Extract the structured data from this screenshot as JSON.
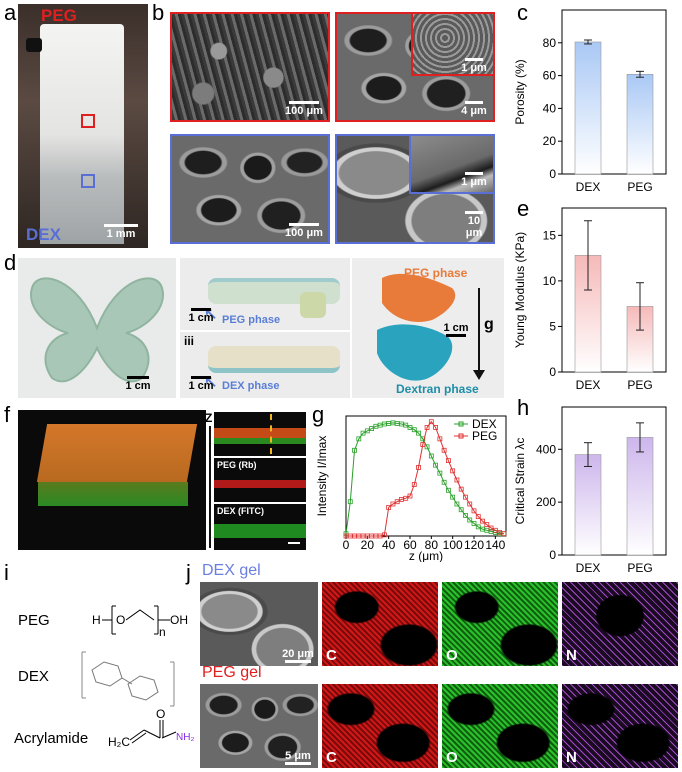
{
  "panel_labels": {
    "a": "a",
    "b": "b",
    "c": "c",
    "d": "d",
    "e": "e",
    "f": "f",
    "g": "g",
    "h": "h",
    "i": "i",
    "j": "j"
  },
  "panel_a": {
    "top_label": "PEG",
    "bottom_label": "DEX",
    "scale": "1 mm"
  },
  "panel_b": {
    "scales": [
      "100 μm",
      "4 μm",
      "1 μm",
      "100 μm",
      "10 μm",
      "1 μm"
    ]
  },
  "panel_d": {
    "scale_1": "1 cm",
    "scale_2": "1 cm",
    "scale_3": "1 cm",
    "scale_4": "1 cm",
    "peg_phase_arrow": "PEG phase",
    "dex_phase_arrow": "DEX phase",
    "sub_iii": "iii",
    "right_top": "PEG phase",
    "right_bottom": "Dextran phase",
    "gravity": "g"
  },
  "panel_f": {
    "z_label": "Z",
    "peg_label": "PEG (Rb)",
    "dex_label": "DEX (FITC)"
  },
  "panel_i": {
    "rows": [
      "PEG",
      "DEX",
      "Acrylamide"
    ]
  },
  "panel_j": {
    "dex_title": "DEX gel",
    "peg_title": "PEG gel",
    "scale_top": "20 μm",
    "scale_bottom": "5 μm",
    "elements": [
      "C",
      "O",
      "N"
    ]
  },
  "colors": {
    "red": "#e02020",
    "blue": "#5a6fd6",
    "green": "#2aa02a",
    "purple": "#b15ee0"
  },
  "chart_data": [
    {
      "id": "c",
      "type": "bar",
      "categories": [
        "DEX",
        "PEG"
      ],
      "values": [
        80.5,
        60.8
      ],
      "errors": [
        1.2,
        1.8
      ],
      "ylabel": "Porosity (%)",
      "ylim": [
        0,
        100
      ],
      "yticks": [
        0,
        20,
        40,
        60,
        80
      ],
      "color": "#a9c8f5"
    },
    {
      "id": "e",
      "type": "bar",
      "categories": [
        "DEX",
        "PEG"
      ],
      "values": [
        12.8,
        7.2
      ],
      "errors": [
        3.8,
        2.6
      ],
      "ylabel": "Young Modulus (KPa)",
      "ylim": [
        0,
        18
      ],
      "yticks": [
        0,
        5,
        10,
        15
      ],
      "color": "#f6b9b9"
    },
    {
      "id": "h",
      "type": "bar",
      "categories": [
        "DEX",
        "PEG"
      ],
      "values": [
        380,
        445
      ],
      "errors": [
        45,
        55
      ],
      "ylabel": "Critical Strain λc",
      "ylim": [
        0,
        560
      ],
      "yticks": [
        0,
        200,
        400
      ],
      "color": "#cdb6ec"
    },
    {
      "id": "g",
      "type": "line",
      "xlabel": "z (μm)",
      "ylabel": "Intensity I/Imax",
      "xlim": [
        0,
        150
      ],
      "ylim": [
        0,
        1.05
      ],
      "xticks": [
        0,
        20,
        40,
        60,
        80,
        100,
        120,
        140
      ],
      "series": [
        {
          "name": "DEX",
          "color": "#2aa02a",
          "x": [
            0,
            4,
            8,
            12,
            16,
            20,
            24,
            28,
            32,
            36,
            40,
            44,
            48,
            52,
            56,
            60,
            64,
            68,
            72,
            76,
            80,
            84,
            88,
            92,
            96,
            100,
            104,
            108,
            112,
            116,
            120,
            124,
            128,
            132,
            136,
            140,
            144,
            148
          ],
          "y": [
            0.02,
            0.3,
            0.75,
            0.85,
            0.9,
            0.92,
            0.94,
            0.96,
            0.97,
            0.98,
            0.985,
            0.99,
            0.985,
            0.98,
            0.97,
            0.95,
            0.93,
            0.9,
            0.85,
            0.78,
            0.7,
            0.62,
            0.55,
            0.47,
            0.4,
            0.34,
            0.28,
            0.23,
            0.18,
            0.14,
            0.11,
            0.08,
            0.06,
            0.05,
            0.04,
            0.03,
            0.02,
            0.02
          ]
        },
        {
          "name": "PEG",
          "color": "#e03030",
          "x": [
            0,
            4,
            8,
            12,
            16,
            20,
            24,
            28,
            32,
            36,
            40,
            44,
            48,
            52,
            56,
            60,
            64,
            68,
            72,
            76,
            80,
            84,
            88,
            92,
            96,
            100,
            104,
            108,
            112,
            116,
            120,
            124,
            128,
            132,
            136,
            140,
            144,
            148
          ],
          "y": [
            0.0,
            0.0,
            0.0,
            0.0,
            0.0,
            0.0,
            0.0,
            0.0,
            0.0,
            0.01,
            0.25,
            0.28,
            0.3,
            0.32,
            0.33,
            0.35,
            0.45,
            0.6,
            0.8,
            0.95,
            1.0,
            0.95,
            0.85,
            0.75,
            0.66,
            0.57,
            0.49,
            0.41,
            0.34,
            0.28,
            0.22,
            0.17,
            0.13,
            0.1,
            0.07,
            0.05,
            0.03,
            0.02
          ]
        }
      ]
    }
  ]
}
